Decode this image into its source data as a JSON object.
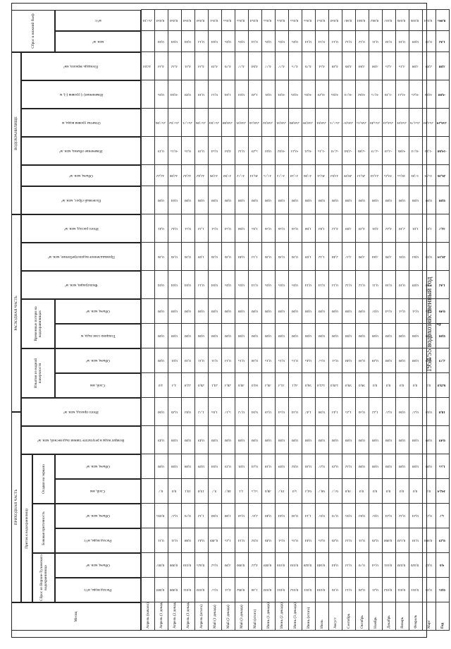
{
  "page_number": "4",
  "title": "1954/55 водохозяйственный год",
  "sections": {
    "income": "ПРИХОДНАЯ ЧАСТЬ",
    "expense": "РАСХОДНАЯ ЧАСТЬ",
    "reservoir": "ВОДОХРАНИЛИЩЕ",
    "inflow": "Приток к водохранилищу",
    "sbros": "Сброс из Верхне-Туломского водохранилища",
    "side": "Боковая приточность",
    "precip": "Осадки на зеркало",
    "intakes": "Изъятия из водной поверхности",
    "transit": "Временные потери на водохранилищах",
    "outflow": "Сброс в нижний бьеф"
  },
  "header_labels": {
    "month": "Месяц",
    "q_rate": "Расход воды, м³/с",
    "q_vol": "Объем, млн. м³",
    "precip_mm": "Слой, мм",
    "precip_vol": "Объем, млн. м³",
    "return": "Возврат воды в результате таяния льда весной, млн. м³",
    "total_in": "Итого приход, млн. м³",
    "evap_mm": "Слой, мм",
    "evap_vol": "Объем, млн. м³",
    "ice_mm": "Толщина слоя льда, м",
    "ice_vol": "Объем, млн. м³",
    "filtration": "Фильтрация, млн. м³",
    "industrial": "Промышленное водопотребление, млн. м³",
    "total_out": "Итого расход, млн. м³",
    "useful": "Полезный сброс, млн. м³",
    "vol": "Объем, млн. м³",
    "vol_change": "Изменение объема, млн. м³",
    "level": "Отметка уровня воды, м",
    "level_change": "Изменение(+) уровня (-), м",
    "area": "Площадь зеркала, км²",
    "out_vol": "млн. м³",
    "out_rate": "м³/с"
  },
  "rows": [
    {
      "m": "Апрель (начало)",
      "c": [
        "",
        "",
        "",
        "",
        "",
        "",
        "",
        "",
        "",
        "",
        "",
        "",
        "",
        "",
        "",
        "",
        "",
        "",
        "",
        "",
        "32,03",
        "",
        "257,61",
        "",
        "4,31",
        "",
        ""
      ]
    },
    {
      "m": "Апрель (1 декада)",
      "c": [
        "0,009",
        "0,007",
        "0,11",
        "0,095",
        "0,7",
        "0,00",
        "0,49",
        "0,60",
        "3,0",
        "0,00",
        "0,00",
        "0,00",
        "0,04",
        "0,36",
        "0,41",
        "0,00",
        "32,22",
        "0,19",
        "257,66",
        "0,05",
        "4,33",
        "0,04",
        "0,050"
      ]
    },
    {
      "m": "Апрель (2 декада)",
      "c": [
        "0,008",
        "0,008",
        "0,31",
        "0,27",
        "0,0",
        "0,00",
        "0,00",
        "0,26",
        "3,3",
        "0,01",
        "0,00",
        "0,00",
        "0,04",
        "0,36",
        "0,42",
        "0,04",
        "32,08",
        "-0,15",
        "257,62",
        "-0,04",
        "4,32",
        "0,04",
        "0,050"
      ]
    },
    {
      "m": "Апрель (3 декада)",
      "c": [
        "0,011",
        "0,010",
        "0,88",
        "0,76",
        "19,1",
        "0,08",
        "0,00",
        "0,83",
        "22,8",
        "0,10",
        "0,00",
        "0,00",
        "0,04",
        "0,36",
        "0,51",
        "0,00",
        "32,42",
        "0,35",
        "257,71",
        "0,09",
        "4,31",
        "0,04",
        "0,050"
      ]
    },
    {
      "m": "Апрель (итого)",
      "c": [
        "0,010",
        "0,025",
        "0,43",
        "1,12",
        "19,8",
        "0,09",
        "0,49",
        "1,72",
        "26,0",
        "0,11",
        "0,00",
        "0,00",
        "0,13",
        "1,09",
        "1,33",
        "0,00",
        "32,42",
        "0,39",
        "257,66",
        "0,10",
        "4,33",
        "0,13",
        "0,050"
      ]
    },
    {
      "m": "Май (1 декада)",
      "c": [
        "0,57",
        "0,52",
        "0,389",
        "0,60",
        "9,7",
        "0,04",
        "0,00",
        "1,65",
        "24,1",
        "0,11",
        "0,00",
        "0,00",
        "0,04",
        "0,36",
        "0,51",
        "0,00",
        "33,96",
        "0,54",
        "257,84",
        "0,13",
        "4,39",
        "0,04",
        "0,051"
      ]
    },
    {
      "m": "Май (2 декада)",
      "c": [
        "4,51",
        "3,90",
        "1,25",
        "1,08",
        "40,7",
        "0,19",
        "0,00",
        "5,17",
        "28,3",
        "0,13",
        "0,00",
        "0,00",
        "0,05",
        "0,36",
        "0,54",
        "0,00",
        "37,60",
        "4,63",
        "258,88",
        "1,04",
        "4,76",
        "0,05",
        "0,055"
      ]
    },
    {
      "m": "Май (3 декада)",
      "c": [
        "0,062",
        "0,060",
        "0,14",
        "0,50",
        "1,1",
        "0,01",
        "0,00",
        "0,72",
        "30,6",
        "0,15",
        "0,00",
        "0,00",
        "0,05",
        "0,40",
        "0,60",
        "0,00",
        "37,72",
        "0,12",
        "258,91",
        "0,03",
        "4,77",
        "0,05",
        "0,055"
      ]
    },
    {
      "m": "Май (итого)",
      "c": [
        "1,38",
        "4,22",
        "0,92",
        "2,47",
        "51,5",
        "0,24",
        "0,00",
        "6,94",
        "83,0",
        "0,38",
        "0,00",
        "0,00",
        "0,14",
        "1,13",
        "1,65",
        "0,00",
        "36,14",
        "5,29",
        "258,56",
        "1,20",
        "4,64",
        "0,14",
        "0,054"
      ]
    },
    {
      "m": "Июнь (1 декада)",
      "c": [
        "0,010",
        "0,009",
        "0,46",
        "0,40",
        "38,6",
        "0,18",
        "0,00",
        "0,59",
        "30,3",
        "0,15",
        "0,00",
        "0,00",
        "0,05",
        "0,36",
        "0,56",
        "0,00",
        "37,75",
        "0,03",
        "258,92",
        "0,01",
        "4,77",
        "0,05",
        "0,055"
      ]
    },
    {
      "m": "Июнь (2 декада)",
      "c": [
        "0,011",
        "0,010",
        "0,51",
        "0,44",
        "19,7",
        "0,09",
        "0,00",
        "0,54",
        "31,3",
        "0,15",
        "0,00",
        "0,00",
        "0,05",
        "0,36",
        "0,56",
        "0,00",
        "37,73",
        "-0,02",
        "258,91",
        "-0,01",
        "4,77",
        "0,05",
        "0,055"
      ]
    },
    {
      "m": "Июнь (3 декада)",
      "c": [
        "0,012",
        "0,010",
        "0,35",
        "0,30",
        "5,0",
        "0,02",
        "0,00",
        "0,34",
        "32,1",
        "0,15",
        "0,00",
        "0,00",
        "0,05",
        "0,36",
        "0,56",
        "0,00",
        "37,50",
        "-0,23",
        "258,86",
        "-0,05",
        "4,75",
        "0,05",
        "0,055"
      ]
    },
    {
      "m": "Июнь (итого)",
      "c": [
        "0,011",
        "0,028",
        "0,44",
        "1,14",
        "63,3",
        "0,30",
        "0,00",
        "1,47",
        "94,0",
        "0,45",
        "0,00",
        "0,00",
        "0,14",
        "1,09",
        "1,68",
        "0,00",
        "37,66",
        "-0,21",
        "258,90",
        "-0,05",
        "4,76",
        "0,14",
        "0,055"
      ]
    },
    {
      "m": "Июль",
      "c": [
        "0,010",
        "0,040",
        "0,25",
        "0,67",
        "60,7",
        "0,27",
        "0,00",
        "0,98",
        "122,0",
        "0,57",
        "0,00",
        "0,00",
        "0,14",
        "1,12",
        "1,83",
        "0,00",
        "36,51",
        "-1,15",
        "258,61",
        "-0,29",
        "4,51",
        "0,14",
        "0,053"
      ]
    },
    {
      "m": "Август",
      "c": [
        "0,16",
        "0,44",
        "0,26",
        "0,70",
        "67,7",
        "0,29",
        "0,00",
        "1,43",
        "120,0",
        "0,51",
        "0,00",
        "0,00",
        "0,13",
        "2,48",
        "4,12",
        "0,00",
        "33,63",
        "-2,70",
        "257,71",
        "-0,65",
        "4,28",
        "0,13",
        "0,050"
      ]
    },
    {
      "m": "Сентябрь",
      "c": [
        "0,13",
        "0,33",
        "0,33",
        "0,95",
        "78,8",
        "0,32",
        "0,00",
        "1,25",
        "99,0",
        "0,40",
        "0,00",
        "0,00",
        "0,12",
        "3,37",
        "3,89",
        "0,00",
        "28,99",
        "-2,64",
        "256,97",
        "-0,74",
        "4,06",
        "0,12",
        "0,047"
      ]
    },
    {
      "m": "Октябрь",
      "c": [
        "0,26",
        "0,70",
        "0,31",
        "0,83",
        "0,0",
        "0,00",
        "0,00",
        "0,56",
        "96,0",
        "0,30",
        "0,00",
        "0,00",
        "0,12",
        "3,96",
        "4,39",
        "0,00",
        "26,13",
        "-2,86",
        "256,15",
        "-0,82",
        "3,84",
        "0,12",
        "0,044"
      ]
    },
    {
      "m": "Ноябрь",
      "c": [
        "0,21",
        "0,54",
        "0,26",
        "0,67",
        "0,0",
        "0,00",
        "0,00",
        "1,22",
        "0,0",
        "0,28",
        "0,00",
        "0,07",
        "0,11",
        "3,84",
        "4,01",
        "0,00",
        "23,34",
        "-2,79",
        "255,40",
        "-0,75",
        "3,60",
        "0,11",
        "0,042"
      ]
    },
    {
      "m": "Декабрь",
      "c": [
        "0,012",
        "0,031",
        "0,060",
        "0,24",
        "0,0",
        "0,00",
        "0,00",
        "0,27",
        "0,0",
        "0,00",
        "0,00",
        "0,54",
        "0,10",
        "3,96",
        "4,22",
        "0,00",
        "19,25",
        "-3,59",
        "254,24",
        "-1,16",
        "3,25",
        "0,10",
        "0,037"
      ]
    },
    {
      "m": "Январь",
      "c": [
        "0,011",
        "0,030",
        "0,120",
        "0,32",
        "0,0",
        "0,00",
        "0,00",
        "0,60",
        "0,0",
        "0,00",
        "0,00",
        "0,51",
        "0,10",
        "0,01",
        "2,10",
        "0,00",
        "18,55",
        "-0,86",
        "254,01",
        "-0,23",
        "3,15",
        "0,10",
        "0,036"
      ]
    },
    {
      "m": "Февраль",
      "c": [
        "0,011",
        "0,026",
        "0,10",
        "0,24",
        "0,0",
        "0,00",
        "0,00",
        "0,27",
        "0,0",
        "0,00",
        "0,00",
        "0,51",
        "0,09",
        "0,83",
        "1,01",
        "0,00",
        "17,81",
        "-0,74",
        "253,76",
        "-0,25",
        "3,08",
        "0,09",
        "0,036"
      ]
    },
    {
      "m": "Март",
      "c": [
        "0,16",
        "0,42",
        "0,080",
        "0,21",
        "0,0",
        "0,00",
        "0,00",
        "0,63",
        "0,0",
        "0,00",
        "0,00",
        "0,85",
        "0,10",
        "0,93",
        "1,01",
        "0,00",
        "15,91",
        "-1,90",
        "253,10",
        "-0,66",
        "2,89",
        "0,10",
        "0,034"
      ]
    },
    {
      "m": "Год",
      "c": [
        "0,05",
        "4,6",
        "0,29",
        "5,7",
        "342,4",
        "1,55",
        "0,49",
        "18,0",
        "629,0",
        "2,79",
        "0,00",
        "0,46",
        "1,42",
        "28,14",
        "32,7",
        "0,00",
        "26,36",
        "-14,68",
        "256,24",
        "-4,00",
        "3,88",
        "1,42",
        "0,045"
      ]
    }
  ]
}
